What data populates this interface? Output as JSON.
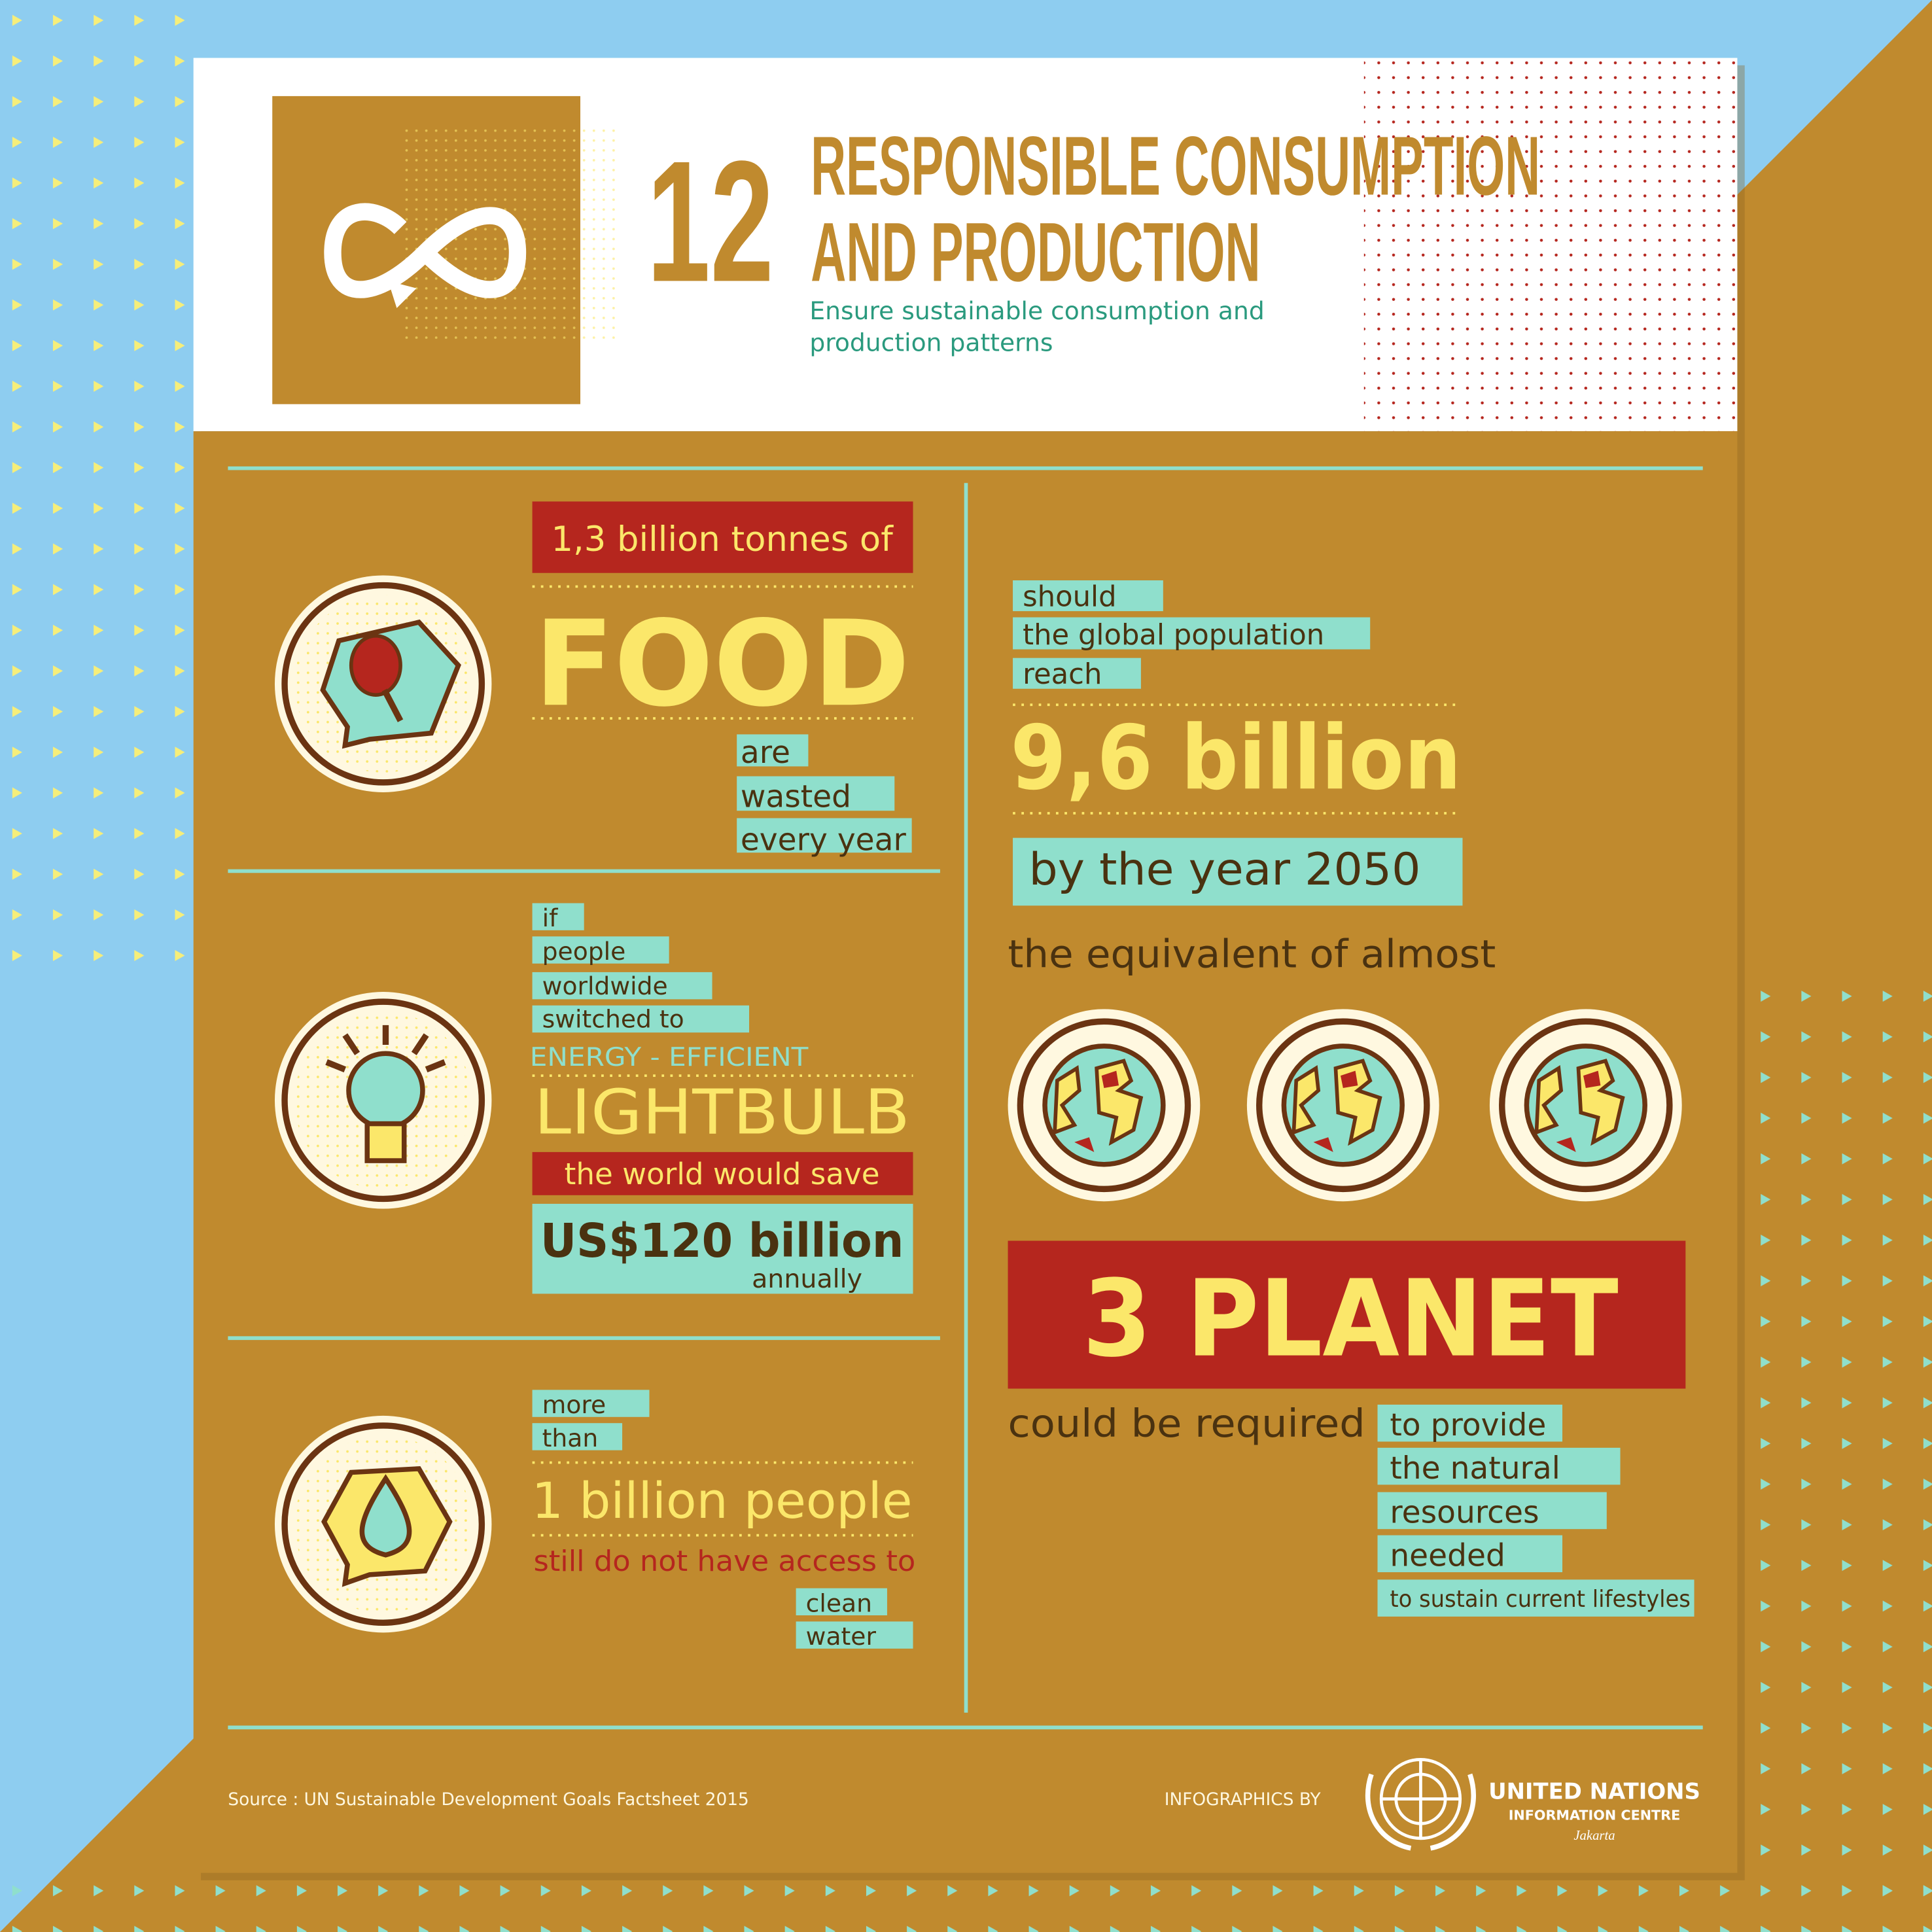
{
  "header": {
    "goal_number": "12",
    "title": [
      "RESPONSIBLE CONSUMPTION",
      "AND PRODUCTION"
    ],
    "subtitle": [
      "Ensure sustainable consumption and",
      "production patterns"
    ]
  },
  "food": {
    "intro": "1,3 billion tonnes of",
    "headline": "FOOD",
    "outro": [
      "are",
      "wasted",
      "every year"
    ]
  },
  "lightbulb": {
    "intro": [
      "if",
      "people",
      "worldwide",
      "switched to"
    ],
    "kicker": "ENERGY - EFFICIENT",
    "headline": "LIGHTBULB",
    "bridge": "the world would save",
    "amount": "US$120 billion",
    "period": "annually"
  },
  "water": {
    "intro": [
      "more",
      "than"
    ],
    "headline": "1 billion people",
    "bridge": "still do not have access to",
    "outro": [
      "clean",
      "water"
    ]
  },
  "population": {
    "intro": [
      "should",
      "the global population",
      "reach"
    ],
    "headline": "9,6 billion",
    "year": "by the year 2050",
    "equivalent": "the equivalent of almost",
    "planets": "3 PLANET",
    "required": "could be required",
    "outro": [
      "to provide",
      "the natural",
      "resources",
      "needed",
      "to sustain current lifestyles"
    ]
  },
  "footer": {
    "source": "Source : UN Sustainable Development Goals Factsheet 2015",
    "credit": "INFOGRAPHICS BY",
    "organization": [
      "UNITED NATIONS",
      "INFORMATION CENTRE"
    ],
    "location": "Jakarta"
  }
}
